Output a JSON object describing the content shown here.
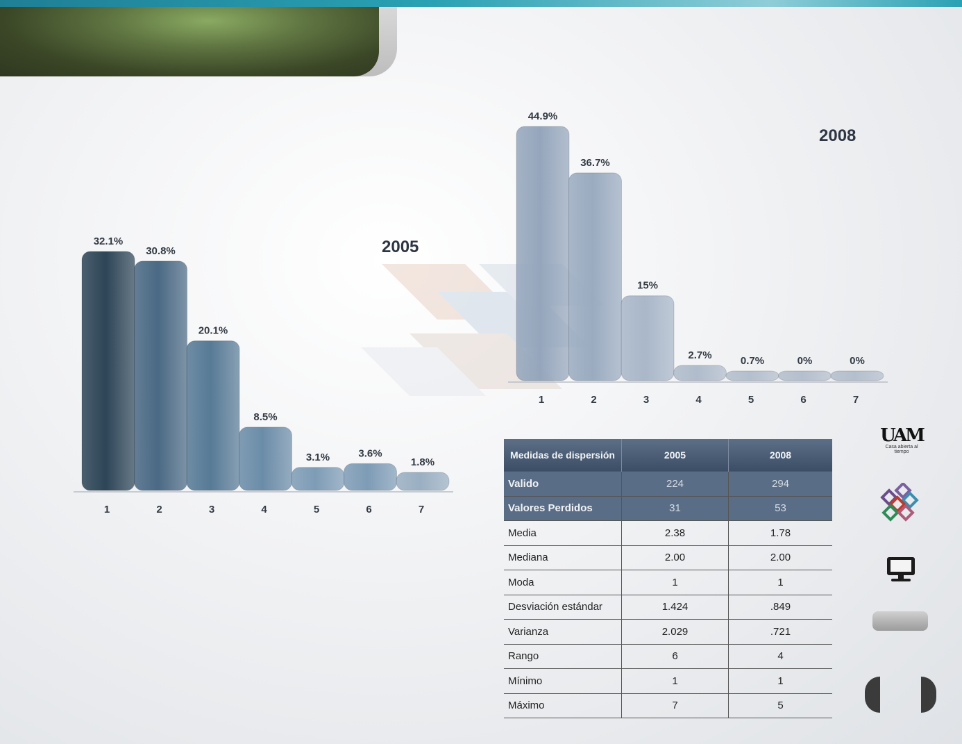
{
  "chart_data": [
    {
      "type": "bar",
      "title": "2005",
      "categories": [
        "1",
        "2",
        "3",
        "4",
        "5",
        "6",
        "7"
      ],
      "values": [
        32.1,
        30.8,
        20.1,
        8.5,
        3.1,
        3.6,
        1.8
      ],
      "labels": [
        "32.1%",
        "30.8%",
        "20.1%",
        "8.5%",
        "3.1%",
        "3.6%",
        "1.8%"
      ],
      "unit": "%",
      "colors": [
        "#2d4557",
        "#4a6984",
        "#577a96",
        "#6b8ca8",
        "#7e9cb6",
        "#7e9cb6",
        "#9aafc2"
      ],
      "grid": false
    },
    {
      "type": "bar",
      "title": "2008",
      "categories": [
        "1",
        "2",
        "3",
        "4",
        "5",
        "6",
        "7"
      ],
      "values": [
        44.9,
        36.7,
        15,
        2.7,
        0.7,
        0,
        0
      ],
      "labels": [
        "44.9%",
        "36.7%",
        "15%",
        "2.7%",
        "0.7%",
        "0%",
        "0%"
      ],
      "unit": "%",
      "colors": [
        "#95a6bc",
        "#9aabc0",
        "#a9b7c9",
        "#b0bccb",
        "#b4bfcd",
        "#b4bfcd",
        "#b4bfcd"
      ],
      "grid": false
    }
  ],
  "table": {
    "headers": [
      "Medidas  de dispersión",
      "2005",
      "2008"
    ],
    "rows": [
      [
        "Valido",
        "224",
        "294"
      ],
      [
        "Valores Perdidos",
        "31",
        "53"
      ],
      [
        "Media",
        "2.38",
        "1.78"
      ],
      [
        "Mediana",
        "2.00",
        "2.00"
      ],
      [
        "Moda",
        "1",
        "1"
      ],
      [
        "Desviación estándar",
        "1.424",
        ".849"
      ],
      [
        "Varianza",
        "2.029",
        ".721"
      ],
      [
        "Rango",
        "6",
        "4"
      ],
      [
        "Mínimo",
        "1",
        "1"
      ],
      [
        "Máximo",
        "7",
        "5"
      ]
    ]
  },
  "sidebar": {
    "logo_mark": "UAM",
    "logo_tagline": "Casa abierta al tiempo",
    "icons": [
      "uam-logo-icon",
      "cubes-icon",
      "monitor-icon"
    ]
  }
}
